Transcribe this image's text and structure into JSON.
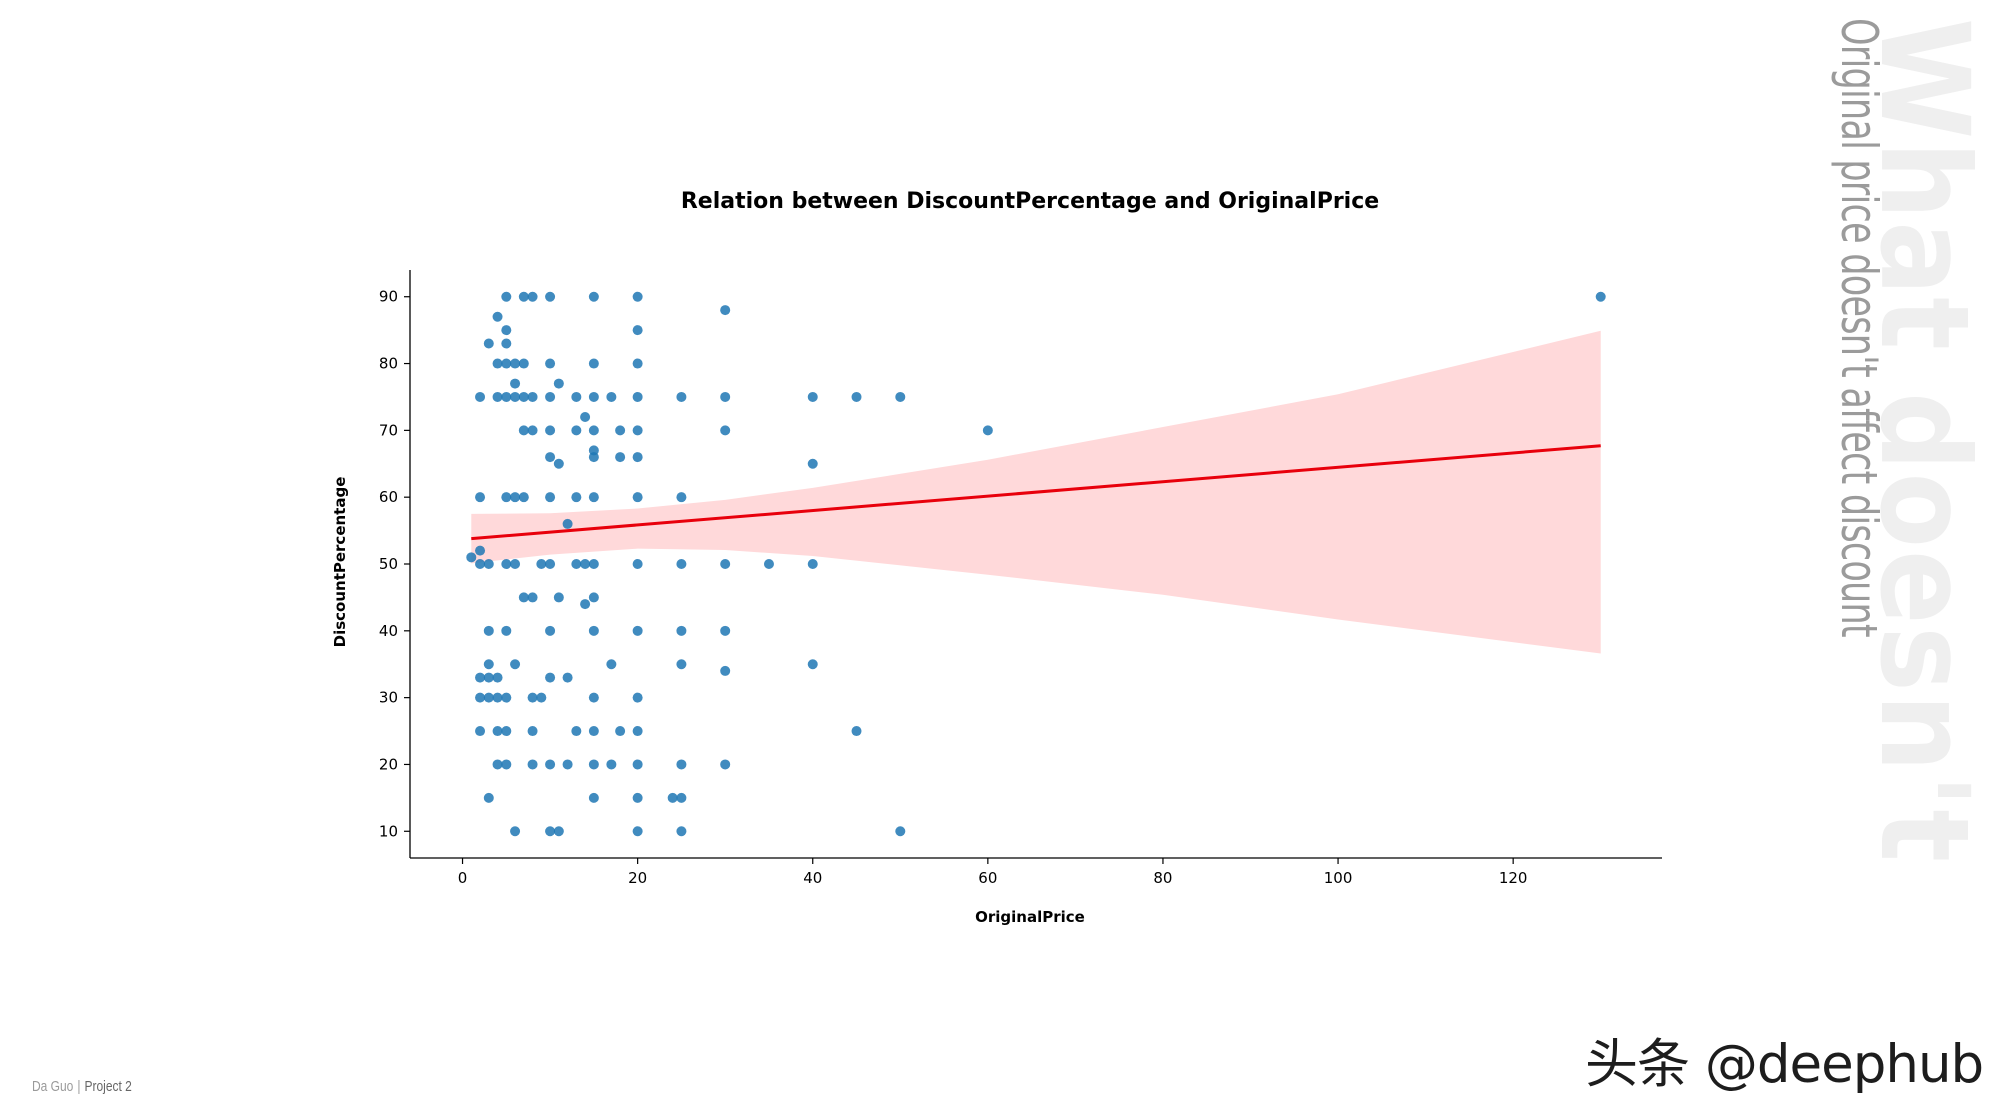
{
  "side": {
    "big_title": "What doesn't",
    "subtitle": "Original price doesn't affect discount"
  },
  "footer": {
    "author": "Da Guo",
    "separator": "|",
    "project": "Project 2"
  },
  "watermark": {
    "text": "头条 @deephub"
  },
  "chart_data": {
    "type": "scatter",
    "title": "Relation between DiscountPercentage and OriginalPrice",
    "xlabel": "OriginalPrice",
    "ylabel": "DiscountPercentage",
    "xlim": [
      -6,
      137
    ],
    "ylim": [
      6,
      94
    ],
    "xticks": [
      0,
      20,
      40,
      60,
      80,
      100,
      120
    ],
    "yticks": [
      10,
      20,
      30,
      40,
      50,
      60,
      70,
      80,
      90
    ],
    "point_color": "#1f77b4",
    "regression": {
      "color": "#e8000b",
      "band_color": "#ffd9da",
      "line": [
        [
          1,
          53.8
        ],
        [
          130,
          67.7
        ]
      ],
      "band_upper": [
        [
          1,
          57.5
        ],
        [
          10,
          57.6
        ],
        [
          20,
          58.3
        ],
        [
          30,
          59.6
        ],
        [
          40,
          61.4
        ],
        [
          60,
          65.6
        ],
        [
          80,
          70.5
        ],
        [
          100,
          75.4
        ],
        [
          130,
          84.9
        ]
      ],
      "band_lower": [
        [
          1,
          50.1
        ],
        [
          10,
          51.4
        ],
        [
          20,
          52.3
        ],
        [
          30,
          52.1
        ],
        [
          40,
          51.2
        ],
        [
          60,
          48.4
        ],
        [
          80,
          45.4
        ],
        [
          100,
          41.7
        ],
        [
          130,
          36.6
        ]
      ]
    },
    "points": [
      [
        1,
        51
      ],
      [
        2,
        52
      ],
      [
        2,
        50
      ],
      [
        3,
        50
      ],
      [
        5,
        50
      ],
      [
        6,
        50
      ],
      [
        9,
        50
      ],
      [
        10,
        50
      ],
      [
        13,
        50
      ],
      [
        14,
        50
      ],
      [
        15,
        50
      ],
      [
        20,
        50
      ],
      [
        25,
        50
      ],
      [
        30,
        50
      ],
      [
        35,
        50
      ],
      [
        40,
        50
      ],
      [
        12,
        56
      ],
      [
        5,
        90
      ],
      [
        7,
        90
      ],
      [
        8,
        90
      ],
      [
        10,
        90
      ],
      [
        15,
        90
      ],
      [
        20,
        90
      ],
      [
        30,
        88
      ],
      [
        130,
        90
      ],
      [
        4,
        87
      ],
      [
        5,
        85
      ],
      [
        20,
        85
      ],
      [
        3,
        83
      ],
      [
        5,
        83
      ],
      [
        4,
        80
      ],
      [
        5,
        80
      ],
      [
        6,
        80
      ],
      [
        7,
        80
      ],
      [
        10,
        80
      ],
      [
        15,
        80
      ],
      [
        20,
        80
      ],
      [
        6,
        77
      ],
      [
        11,
        77
      ],
      [
        2,
        75
      ],
      [
        4,
        75
      ],
      [
        5,
        75
      ],
      [
        6,
        75
      ],
      [
        7,
        75
      ],
      [
        8,
        75
      ],
      [
        10,
        75
      ],
      [
        13,
        75
      ],
      [
        15,
        75
      ],
      [
        17,
        75
      ],
      [
        20,
        75
      ],
      [
        25,
        75
      ],
      [
        30,
        75
      ],
      [
        40,
        75
      ],
      [
        45,
        75
      ],
      [
        50,
        75
      ],
      [
        14,
        72
      ],
      [
        7,
        70
      ],
      [
        8,
        70
      ],
      [
        10,
        70
      ],
      [
        13,
        70
      ],
      [
        15,
        70
      ],
      [
        18,
        70
      ],
      [
        20,
        70
      ],
      [
        30,
        70
      ],
      [
        60,
        70
      ],
      [
        10,
        66
      ],
      [
        15,
        67
      ],
      [
        15,
        66
      ],
      [
        18,
        66
      ],
      [
        20,
        66
      ],
      [
        11,
        65
      ],
      [
        40,
        65
      ],
      [
        2,
        60
      ],
      [
        5,
        60
      ],
      [
        6,
        60
      ],
      [
        7,
        60
      ],
      [
        10,
        60
      ],
      [
        13,
        60
      ],
      [
        15,
        60
      ],
      [
        20,
        60
      ],
      [
        25,
        60
      ],
      [
        7,
        45
      ],
      [
        8,
        45
      ],
      [
        11,
        45
      ],
      [
        14,
        44
      ],
      [
        15,
        45
      ],
      [
        3,
        40
      ],
      [
        5,
        40
      ],
      [
        10,
        40
      ],
      [
        15,
        40
      ],
      [
        20,
        40
      ],
      [
        25,
        40
      ],
      [
        30,
        40
      ],
      [
        3,
        35
      ],
      [
        6,
        35
      ],
      [
        17,
        35
      ],
      [
        25,
        35
      ],
      [
        30,
        34
      ],
      [
        40,
        35
      ],
      [
        2,
        33
      ],
      [
        3,
        33
      ],
      [
        4,
        33
      ],
      [
        10,
        33
      ],
      [
        12,
        33
      ],
      [
        2,
        30
      ],
      [
        3,
        30
      ],
      [
        4,
        30
      ],
      [
        5,
        30
      ],
      [
        8,
        30
      ],
      [
        9,
        30
      ],
      [
        15,
        30
      ],
      [
        20,
        30
      ],
      [
        2,
        25
      ],
      [
        4,
        25
      ],
      [
        5,
        25
      ],
      [
        8,
        25
      ],
      [
        13,
        25
      ],
      [
        15,
        25
      ],
      [
        18,
        25
      ],
      [
        20,
        25
      ],
      [
        45,
        25
      ],
      [
        4,
        20
      ],
      [
        5,
        20
      ],
      [
        8,
        20
      ],
      [
        10,
        20
      ],
      [
        12,
        20
      ],
      [
        15,
        20
      ],
      [
        17,
        20
      ],
      [
        20,
        20
      ],
      [
        25,
        20
      ],
      [
        30,
        20
      ],
      [
        3,
        15
      ],
      [
        15,
        15
      ],
      [
        20,
        15
      ],
      [
        24,
        15
      ],
      [
        25,
        15
      ],
      [
        6,
        10
      ],
      [
        10,
        10
      ],
      [
        11,
        10
      ],
      [
        20,
        10
      ],
      [
        25,
        10
      ],
      [
        50,
        10
      ]
    ]
  }
}
